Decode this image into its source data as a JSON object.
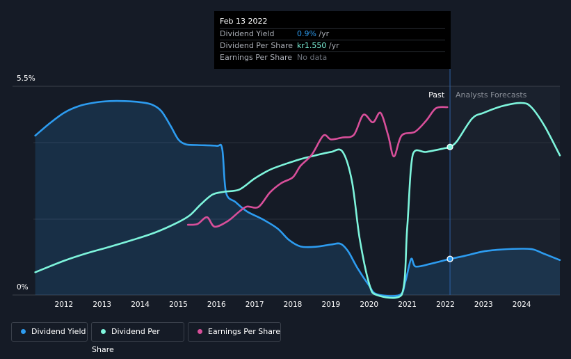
{
  "tooltip": {
    "date": "Feb 13 2022",
    "rows": [
      {
        "name": "Dividend Yield",
        "value": "0.9%",
        "unit": " /yr",
        "color": "#2d9cf0"
      },
      {
        "name": "Dividend Per Share",
        "value": "kr1.550",
        "unit": " /yr",
        "color": "#7ef5dc"
      },
      {
        "name": "Earnings Per Share",
        "value": "No data",
        "unit": "",
        "color": "#6b7079"
      }
    ]
  },
  "regions": {
    "past": "Past",
    "forecast": "Analysts Forecasts"
  },
  "legend": [
    {
      "label": "Dividend Yield",
      "color": "#2d9cf0"
    },
    {
      "label": "Dividend Per Share",
      "color": "#7ef5dc"
    },
    {
      "label": "Earnings Per Share",
      "color": "#d84f9a"
    }
  ],
  "chart_data": {
    "type": "line",
    "yaxis": {
      "top_label": "5.5%",
      "bottom_label": "0%",
      "ylim": [
        0,
        5.5
      ]
    },
    "xlim": [
      2011.2,
      2025.0
    ],
    "x_ticks": [
      "2012",
      "2013",
      "2014",
      "2015",
      "2016",
      "2017",
      "2018",
      "2019",
      "2020",
      "2021",
      "2022",
      "2023",
      "2024"
    ],
    "x_tick_values": [
      2012,
      2013,
      2014,
      2015,
      2016,
      2017,
      2018,
      2019,
      2020,
      2021,
      2022,
      2023,
      2024
    ],
    "past_end": 2022.12,
    "past_band_start": 2021.25,
    "series": [
      {
        "name": "Dividend Yield",
        "color": "#2d9cf0",
        "fill": true,
        "values": [
          [
            2011.25,
            4.2
          ],
          [
            2011.6,
            4.5
          ],
          [
            2012.0,
            4.8
          ],
          [
            2012.4,
            4.98
          ],
          [
            2012.8,
            5.07
          ],
          [
            2013.2,
            5.11
          ],
          [
            2013.6,
            5.11
          ],
          [
            2014.0,
            5.08
          ],
          [
            2014.3,
            5.02
          ],
          [
            2014.55,
            4.85
          ],
          [
            2014.8,
            4.45
          ],
          [
            2015.0,
            4.1
          ],
          [
            2015.2,
            3.97
          ],
          [
            2015.5,
            3.95
          ],
          [
            2016.0,
            3.93
          ],
          [
            2016.15,
            3.85
          ],
          [
            2016.25,
            2.7
          ],
          [
            2016.5,
            2.45
          ],
          [
            2016.8,
            2.2
          ],
          [
            2017.2,
            2.0
          ],
          [
            2017.6,
            1.75
          ],
          [
            2017.9,
            1.45
          ],
          [
            2018.2,
            1.28
          ],
          [
            2018.6,
            1.27
          ],
          [
            2019.0,
            1.33
          ],
          [
            2019.25,
            1.35
          ],
          [
            2019.45,
            1.15
          ],
          [
            2019.7,
            0.7
          ],
          [
            2020.0,
            0.25
          ],
          [
            2020.2,
            0.02
          ],
          [
            2020.8,
            0.0
          ],
          [
            2020.95,
            0.35
          ],
          [
            2021.1,
            0.95
          ],
          [
            2021.22,
            0.75
          ],
          [
            2021.6,
            0.82
          ],
          [
            2022.0,
            0.92
          ],
          [
            2022.12,
            0.95
          ],
          [
            2022.5,
            1.03
          ],
          [
            2023.0,
            1.15
          ],
          [
            2023.5,
            1.2
          ],
          [
            2024.0,
            1.22
          ],
          [
            2024.3,
            1.2
          ],
          [
            2024.6,
            1.08
          ],
          [
            2025.0,
            0.92
          ]
        ]
      },
      {
        "name": "Dividend Per Share",
        "color": "#7ef5dc",
        "fill": false,
        "values": [
          [
            2011.25,
            0.6
          ],
          [
            2012.0,
            0.9
          ],
          [
            2012.6,
            1.1
          ],
          [
            2013.2,
            1.27
          ],
          [
            2013.8,
            1.45
          ],
          [
            2014.4,
            1.65
          ],
          [
            2015.0,
            1.92
          ],
          [
            2015.3,
            2.1
          ],
          [
            2015.6,
            2.4
          ],
          [
            2015.9,
            2.65
          ],
          [
            2016.2,
            2.72
          ],
          [
            2016.6,
            2.78
          ],
          [
            2017.0,
            3.07
          ],
          [
            2017.4,
            3.3
          ],
          [
            2017.8,
            3.45
          ],
          [
            2018.2,
            3.58
          ],
          [
            2018.6,
            3.68
          ],
          [
            2019.0,
            3.77
          ],
          [
            2019.3,
            3.78
          ],
          [
            2019.55,
            3.0
          ],
          [
            2019.75,
            1.5
          ],
          [
            2020.0,
            0.3
          ],
          [
            2020.2,
            0.0
          ],
          [
            2020.85,
            0.0
          ],
          [
            2021.0,
            1.8
          ],
          [
            2021.15,
            3.72
          ],
          [
            2021.5,
            3.77
          ],
          [
            2022.0,
            3.87
          ],
          [
            2022.12,
            3.9
          ],
          [
            2022.3,
            4.05
          ],
          [
            2022.7,
            4.65
          ],
          [
            2023.0,
            4.8
          ],
          [
            2023.5,
            4.98
          ],
          [
            2024.0,
            5.06
          ],
          [
            2024.25,
            4.95
          ],
          [
            2024.6,
            4.45
          ],
          [
            2025.0,
            3.68
          ]
        ]
      },
      {
        "name": "Earnings Per Share",
        "color": "#d84f9a",
        "fill": false,
        "values": [
          [
            2015.25,
            1.85
          ],
          [
            2015.5,
            1.87
          ],
          [
            2015.75,
            2.05
          ],
          [
            2015.95,
            1.8
          ],
          [
            2016.3,
            1.95
          ],
          [
            2016.6,
            2.2
          ],
          [
            2016.8,
            2.33
          ],
          [
            2017.1,
            2.32
          ],
          [
            2017.4,
            2.7
          ],
          [
            2017.7,
            2.95
          ],
          [
            2018.0,
            3.1
          ],
          [
            2018.2,
            3.4
          ],
          [
            2018.5,
            3.7
          ],
          [
            2018.8,
            4.2
          ],
          [
            2019.0,
            4.1
          ],
          [
            2019.3,
            4.15
          ],
          [
            2019.6,
            4.22
          ],
          [
            2019.85,
            4.75
          ],
          [
            2020.1,
            4.55
          ],
          [
            2020.3,
            4.8
          ],
          [
            2020.5,
            4.2
          ],
          [
            2020.65,
            3.65
          ],
          [
            2020.85,
            4.2
          ],
          [
            2021.2,
            4.3
          ],
          [
            2021.5,
            4.6
          ],
          [
            2021.75,
            4.92
          ],
          [
            2022.05,
            4.95
          ]
        ]
      }
    ],
    "markers": [
      {
        "series": "Dividend Per Share",
        "x": 2022.12,
        "y": 3.9
      },
      {
        "series": "Dividend Yield",
        "x": 2022.12,
        "y": 0.95
      }
    ]
  }
}
